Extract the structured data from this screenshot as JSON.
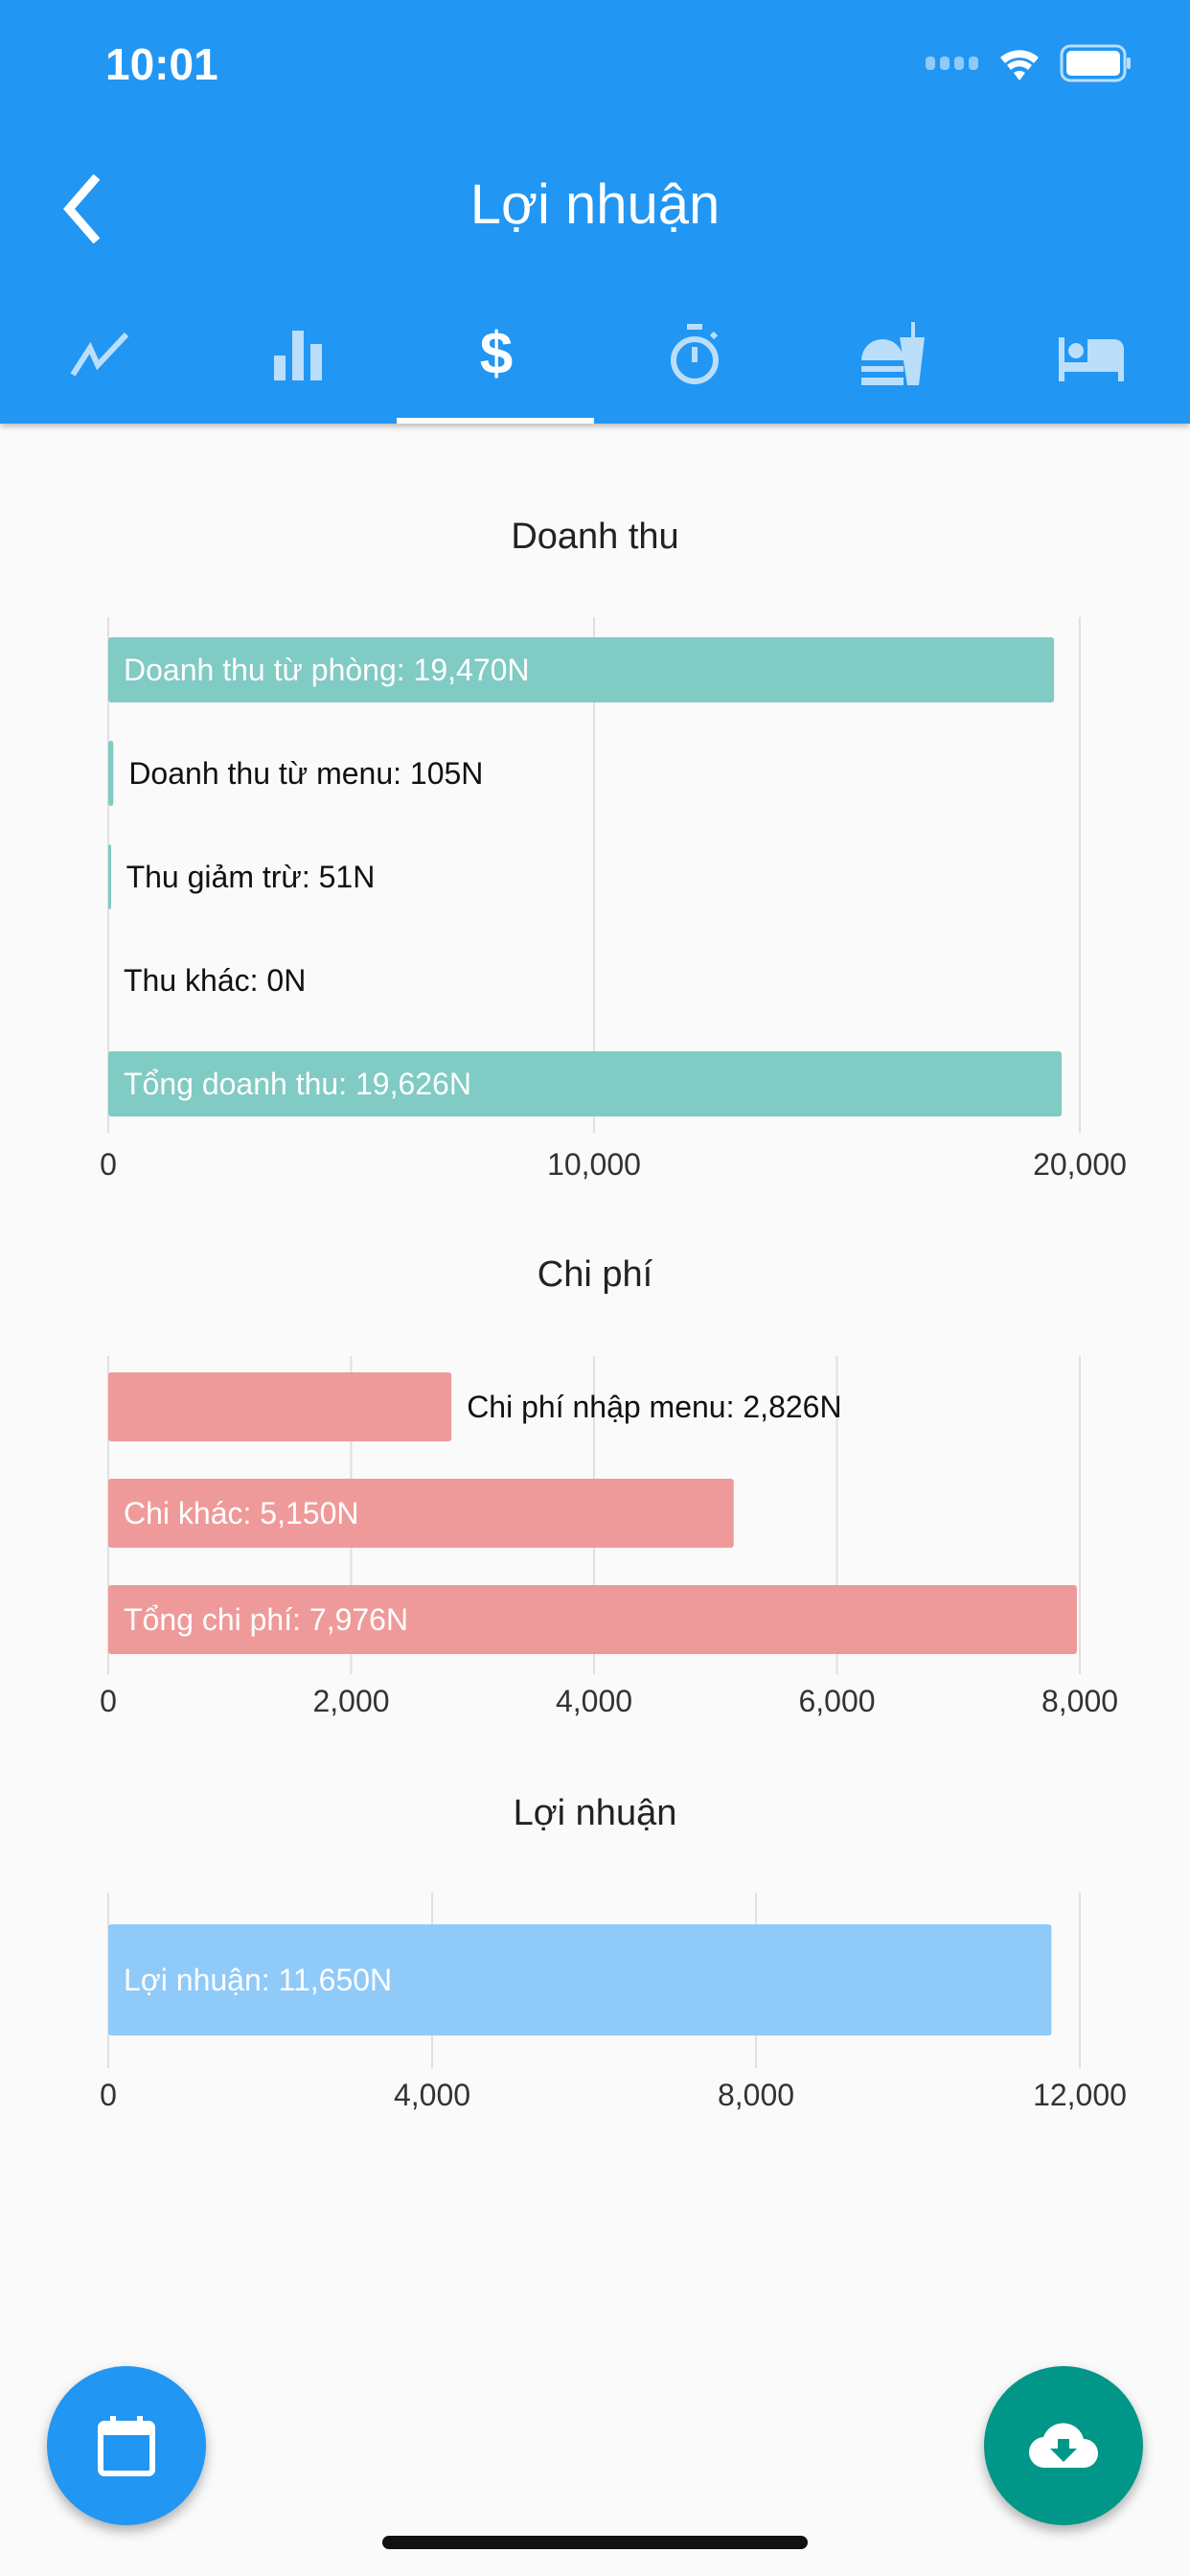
{
  "status_bar": {
    "time": "10:01"
  },
  "header": {
    "title": "Lợi nhuận",
    "back_icon": "chevron-left-icon"
  },
  "tabs": [
    {
      "icon": "trending-up-icon",
      "selected": false
    },
    {
      "icon": "bar-chart-icon",
      "selected": false
    },
    {
      "icon": "dollar-icon",
      "selected": true
    },
    {
      "icon": "timer-icon",
      "selected": false
    },
    {
      "icon": "fastfood-icon",
      "selected": false
    },
    {
      "icon": "hotel-bed-icon",
      "selected": false
    }
  ],
  "colors": {
    "primary": "#2196F3",
    "revenue": "#80CBC4",
    "cost": "#EF9A9A",
    "profit": "#90CAF9",
    "download_fab": "#009688"
  },
  "chart_data": [
    {
      "type": "bar",
      "orientation": "horizontal",
      "title": "Doanh thu",
      "categories": [
        "Doanh thu từ phòng",
        "Doanh thu từ menu",
        "Thu giảm trừ",
        "Thu khác",
        "Tổng doanh thu"
      ],
      "labels": [
        "Doanh thu từ phòng: 19,470N",
        "Doanh thu từ menu: 105N",
        "Thu giảm trừ: 51N",
        "Thu khác: 0N",
        "Tổng doanh thu: 19,626N"
      ],
      "values": [
        19470,
        105,
        51,
        0,
        19626
      ],
      "xlim": [
        0,
        20000
      ],
      "ticks": [
        0,
        10000,
        20000
      ],
      "tick_labels": [
        "0",
        "10,000",
        "20,000"
      ],
      "color": "#80CBC4",
      "grid": true
    },
    {
      "type": "bar",
      "orientation": "horizontal",
      "title": "Chi phí",
      "categories": [
        "Chi phí nhập menu",
        "Chi khác",
        "Tổng chi phí"
      ],
      "labels": [
        "Chi phí nhập menu: 2,826N",
        "Chi khác: 5,150N",
        "Tổng chi phí: 7,976N"
      ],
      "values": [
        2826,
        5150,
        7976
      ],
      "xlim": [
        0,
        8000
      ],
      "ticks": [
        0,
        2000,
        4000,
        6000,
        8000
      ],
      "tick_labels": [
        "0",
        "2,000",
        "4,000",
        "6,000",
        "8,000"
      ],
      "color": "#EF9A9A",
      "grid": true
    },
    {
      "type": "bar",
      "orientation": "horizontal",
      "title": "Lợi nhuận",
      "categories": [
        "Lợi nhuận"
      ],
      "labels": [
        "Lợi nhuận: 11,650N"
      ],
      "values": [
        11650
      ],
      "xlim": [
        0,
        12000
      ],
      "ticks": [
        0,
        4000,
        8000,
        12000
      ],
      "tick_labels": [
        "0",
        "4,000",
        "8,000",
        "12,000"
      ],
      "color": "#90CAF9",
      "grid": true
    }
  ],
  "fabs": {
    "left_icon": "calendar-icon",
    "right_icon": "cloud-download-icon"
  }
}
